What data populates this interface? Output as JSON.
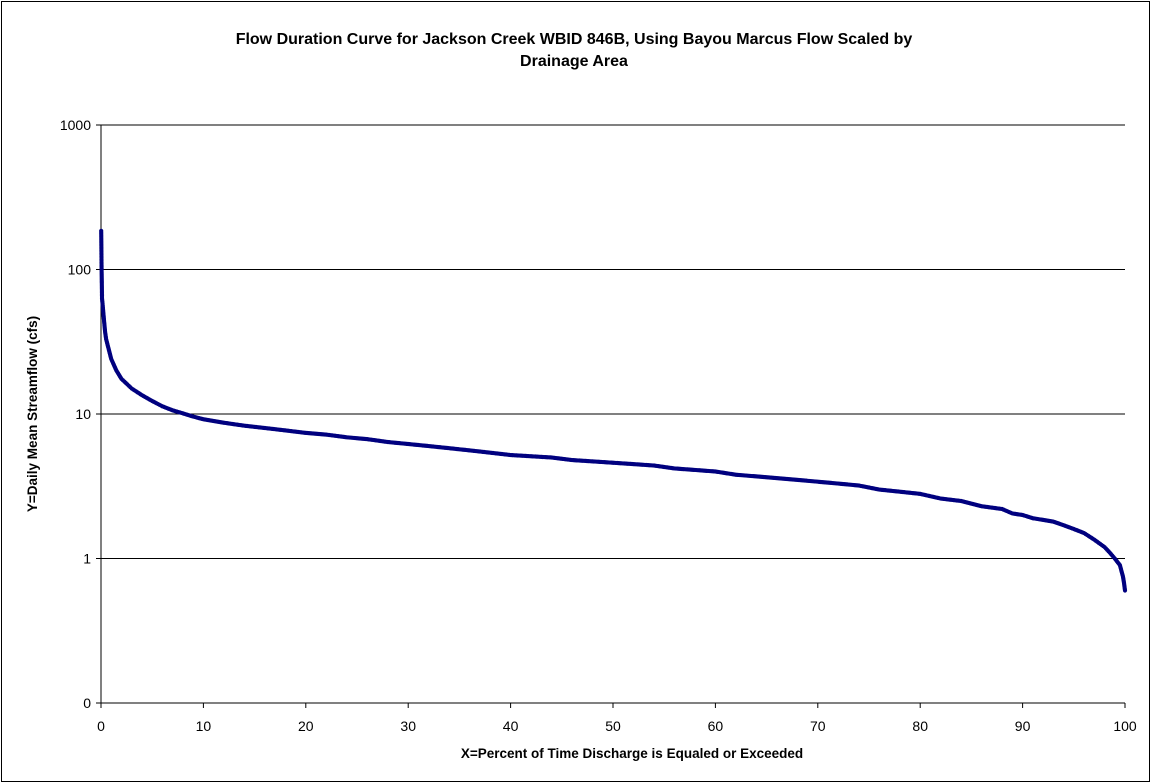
{
  "chart_data": {
    "type": "scatter",
    "title": "Flow Duration Curve for Jackson Creek WBID 846B, Using Bayou Marcus Flow Scaled by Drainage Area",
    "title_lines": [
      "Flow Duration Curve for Jackson Creek WBID 846B, Using Bayou Marcus Flow Scaled by",
      "Drainage Area"
    ],
    "xlabel": "X=Percent of Time Discharge is Equaled or Exceeded",
    "ylabel": "Y=Daily Mean Streamflow (cfs)",
    "xlim": [
      0,
      100
    ],
    "ylim": [
      0.1,
      1000
    ],
    "y_scale": "log",
    "x_ticks": [
      0,
      10,
      20,
      30,
      40,
      50,
      60,
      70,
      80,
      90,
      100
    ],
    "y_ticks": [
      {
        "value": 0.1,
        "label": "0"
      },
      {
        "value": 1,
        "label": "1"
      },
      {
        "value": 10,
        "label": "10"
      },
      {
        "value": 100,
        "label": "100"
      },
      {
        "value": 1000,
        "label": "1000"
      }
    ],
    "grid": "horizontal",
    "legend": "none",
    "marker_color": "#00007F",
    "series": [
      {
        "points": [
          [
            0.02,
            185
          ],
          [
            0.05,
            112
          ],
          [
            0.1,
            63
          ],
          [
            0.15,
            58
          ],
          [
            0.2,
            53
          ],
          [
            0.3,
            44
          ],
          [
            0.4,
            37
          ],
          [
            0.5,
            33
          ],
          [
            0.7,
            29
          ],
          [
            1.0,
            24
          ],
          [
            1.5,
            20
          ],
          [
            2.0,
            17.5
          ],
          [
            3.0,
            15
          ],
          [
            4.0,
            13.5
          ],
          [
            5.0,
            12.3
          ],
          [
            6.0,
            11.3
          ],
          [
            7.0,
            10.6
          ],
          [
            8.0,
            10.1
          ],
          [
            9.0,
            9.6
          ],
          [
            10.0,
            9.2
          ],
          [
            12.0,
            8.7
          ],
          [
            14.0,
            8.3
          ],
          [
            16.0,
            8.0
          ],
          [
            18.0,
            7.7
          ],
          [
            20.0,
            7.4
          ],
          [
            22.0,
            7.2
          ],
          [
            24.0,
            6.9
          ],
          [
            26.0,
            6.7
          ],
          [
            28.0,
            6.4
          ],
          [
            30.0,
            6.2
          ],
          [
            32.0,
            6.0
          ],
          [
            34.0,
            5.8
          ],
          [
            36.0,
            5.6
          ],
          [
            38.0,
            5.4
          ],
          [
            40.0,
            5.2
          ],
          [
            42.0,
            5.1
          ],
          [
            44.0,
            5.0
          ],
          [
            46.0,
            4.8
          ],
          [
            48.0,
            4.7
          ],
          [
            50.0,
            4.6
          ],
          [
            52.0,
            4.5
          ],
          [
            54.0,
            4.4
          ],
          [
            56.0,
            4.2
          ],
          [
            58.0,
            4.1
          ],
          [
            60.0,
            4.0
          ],
          [
            62.0,
            3.8
          ],
          [
            64.0,
            3.7
          ],
          [
            66.0,
            3.6
          ],
          [
            68.0,
            3.5
          ],
          [
            70.0,
            3.4
          ],
          [
            72.0,
            3.3
          ],
          [
            74.0,
            3.2
          ],
          [
            76.0,
            3.0
          ],
          [
            78.0,
            2.9
          ],
          [
            80.0,
            2.8
          ],
          [
            82.0,
            2.6
          ],
          [
            84.0,
            2.5
          ],
          [
            86.0,
            2.3
          ],
          [
            88.0,
            2.2
          ],
          [
            89.0,
            2.05
          ],
          [
            90.0,
            2.0
          ],
          [
            91.0,
            1.9
          ],
          [
            92.0,
            1.85
          ],
          [
            93.0,
            1.8
          ],
          [
            94.0,
            1.7
          ],
          [
            95.0,
            1.6
          ],
          [
            96.0,
            1.5
          ],
          [
            97.0,
            1.35
          ],
          [
            98.0,
            1.2
          ],
          [
            98.5,
            1.1
          ],
          [
            99.0,
            1.0
          ],
          [
            99.5,
            0.9
          ],
          [
            99.8,
            0.75
          ],
          [
            99.9,
            0.68
          ],
          [
            100.0,
            0.6
          ]
        ]
      }
    ]
  }
}
